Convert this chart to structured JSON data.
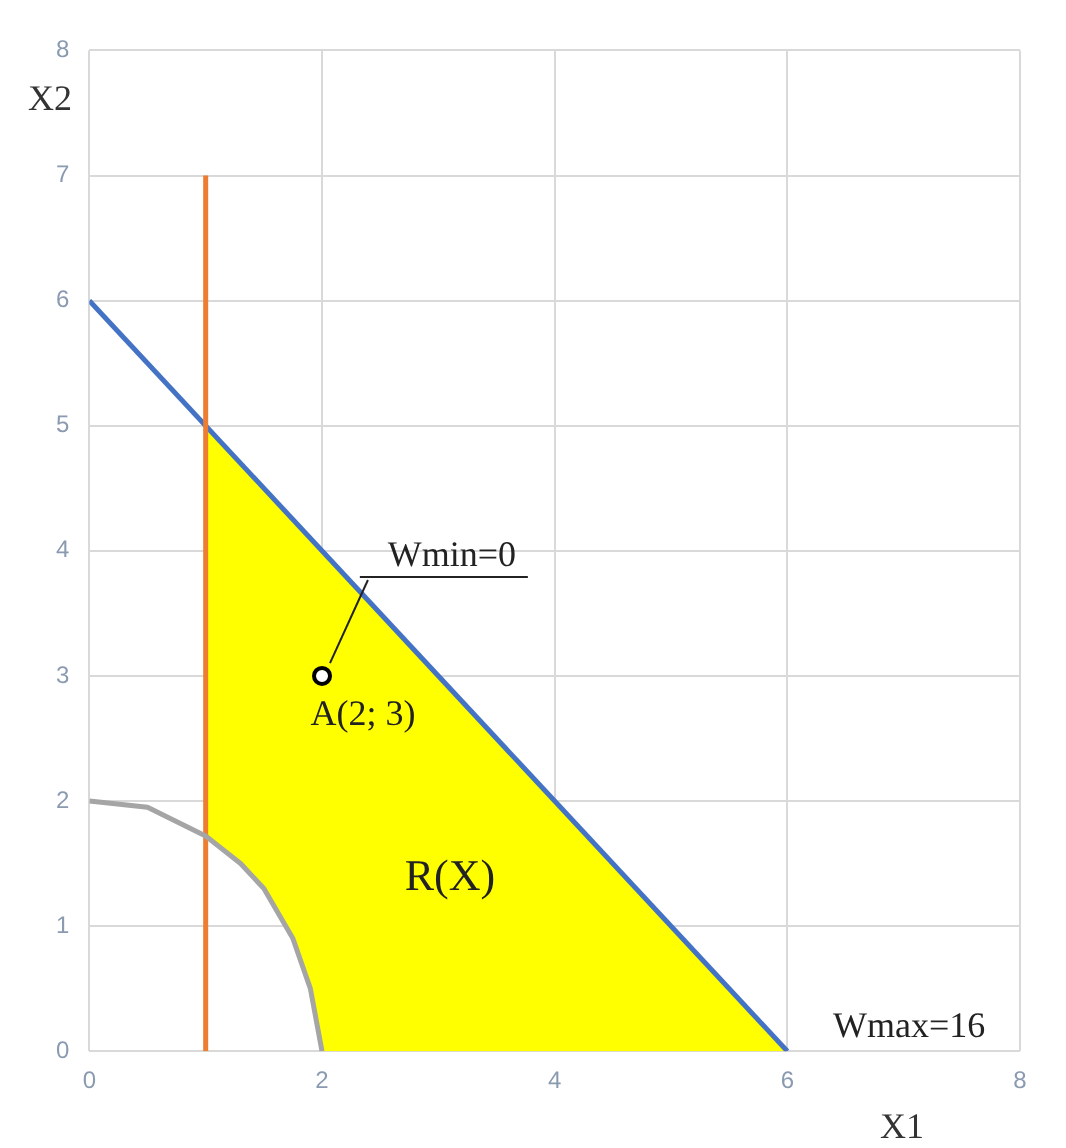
{
  "chart_data": {
    "type": "line",
    "xlabel": "X1",
    "ylabel": "X2",
    "xlim": [
      0,
      8
    ],
    "xticks": [
      0,
      2,
      4,
      6,
      8
    ],
    "ylim": [
      0,
      8
    ],
    "yticks": [
      0,
      1,
      2,
      3,
      4,
      5,
      6,
      7,
      8
    ],
    "grid": true,
    "legend": false,
    "marker": "none",
    "series": [
      {
        "type": "area",
        "color": "#ffff00",
        "x": [
          1,
          1,
          6,
          2,
          1.9,
          1.75,
          1.5,
          1.3,
          1
        ],
        "values": [
          1.72,
          5,
          0,
          0,
          0.5,
          0.9,
          1.3,
          1.5,
          1.72
        ]
      },
      {
        "color": "#4472c4",
        "x": [
          0,
          6
        ],
        "values": [
          6,
          0
        ]
      },
      {
        "color": "#ed7d31",
        "x": [
          1,
          1
        ],
        "values": [
          0,
          7
        ]
      },
      {
        "color": "#a5a5a5",
        "x": [
          0,
          0.5,
          1,
          1.3,
          1.5,
          1.75,
          1.9,
          2
        ],
        "values": [
          2,
          1.95,
          1.72,
          1.5,
          1.3,
          0.9,
          0.5,
          0
        ]
      },
      {
        "type": "scatter",
        "color": "#000000",
        "marker": "circle",
        "x": [
          2
        ],
        "values": [
          3
        ]
      }
    ],
    "annotations": [
      {
        "text": "Wmin=0",
        "x": 2,
        "y": 3
      },
      "A(2; 3)",
      "R(X)",
      "Wmax=16"
    ]
  }
}
